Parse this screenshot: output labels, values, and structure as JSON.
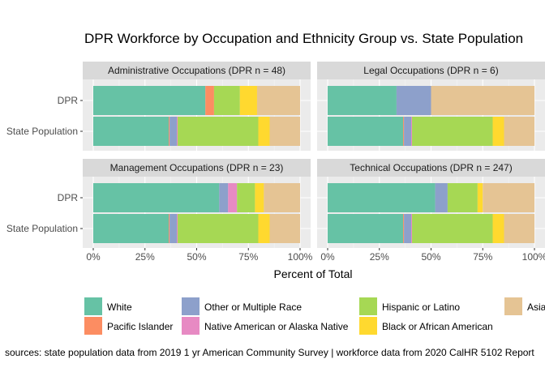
{
  "chart_data": {
    "type": "bar",
    "orientation": "horizontal",
    "stacked": true,
    "title": "DPR Workforce by Occupation and Ethnicity Group vs. State Population",
    "xlabel": "Percent of Total",
    "ylabel": "",
    "xlim": [
      0,
      1
    ],
    "x_ticks": [
      "0%",
      "25%",
      "50%",
      "75%",
      "100%"
    ],
    "grid": true,
    "legend_position": "bottom",
    "categories": [
      "DPR",
      "State Population"
    ],
    "series": [
      {
        "name": "White",
        "color": "#66c2a5"
      },
      {
        "name": "Pacific Islander",
        "color": "#fc8d62"
      },
      {
        "name": "Other or Multiple Race",
        "color": "#8da0cb"
      },
      {
        "name": "Native American or Alaska Native",
        "color": "#e78ac3"
      },
      {
        "name": "Hispanic or Latino",
        "color": "#a6d854"
      },
      {
        "name": "Black or African American",
        "color": "#ffd92f"
      },
      {
        "name": "Asian",
        "color": "#e5c494"
      }
    ],
    "panels": [
      {
        "title": "Administrative Occupations (DPR n = 48)",
        "bars": {
          "DPR": [
            0.542,
            0.042,
            0,
            0,
            0.125,
            0.083,
            0.208
          ],
          "State Population": [
            0.365,
            0.004,
            0.035,
            0.004,
            0.39,
            0.055,
            0.147
          ]
        }
      },
      {
        "title": "Legal Occupations (DPR n = 6)",
        "bars": {
          "DPR": [
            0.333,
            0,
            0.167,
            0,
            0,
            0,
            0.5
          ],
          "State Population": [
            0.365,
            0.004,
            0.035,
            0.004,
            0.39,
            0.055,
            0.147
          ]
        }
      },
      {
        "title": "Management Occupations (DPR n = 23)",
        "bars": {
          "DPR": [
            0.609,
            0,
            0.043,
            0.043,
            0.087,
            0.043,
            0.175
          ],
          "State Population": [
            0.365,
            0.004,
            0.035,
            0.004,
            0.39,
            0.055,
            0.147
          ]
        }
      },
      {
        "title": "Technical Occupations (DPR n = 247)",
        "bars": {
          "DPR": [
            0.52,
            0,
            0.06,
            0,
            0.145,
            0.025,
            0.25
          ],
          "State Population": [
            0.365,
            0.004,
            0.035,
            0.004,
            0.39,
            0.055,
            0.147
          ]
        }
      }
    ],
    "caption": "sources: state population data from 2019 1 yr American Community Survey  |  workforce data from 2020 CalHR 5102 Report"
  }
}
